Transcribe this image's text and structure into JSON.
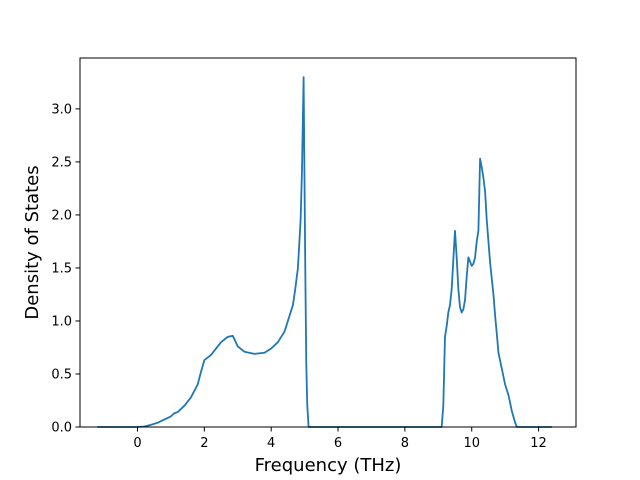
{
  "chart_data": {
    "type": "line",
    "title": "",
    "xlabel": "Frequency (THz)",
    "ylabel": "Density of States",
    "xlim": [
      -1.72,
      13.12
    ],
    "ylim": [
      0.0,
      3.48
    ],
    "xticks": [
      0,
      2,
      4,
      6,
      8,
      10,
      12
    ],
    "xtick_labels": [
      "0",
      "2",
      "4",
      "6",
      "8",
      "10",
      "12"
    ],
    "yticks": [
      0.0,
      0.5,
      1.0,
      1.5,
      2.0,
      2.5,
      3.0
    ],
    "ytick_labels": [
      "0.0",
      "0.5",
      "1.0",
      "1.5",
      "2.0",
      "2.5",
      "3.0"
    ],
    "grid": false,
    "line_color": "#1f77b4",
    "series": [
      {
        "x": [
          -1.2,
          -0.5,
          0.0,
          0.2,
          0.4,
          0.6,
          0.8,
          1.0,
          1.1,
          1.2,
          1.4,
          1.6,
          1.8,
          1.9,
          2.0,
          2.2,
          2.3,
          2.5,
          2.7,
          2.85,
          3.0,
          3.2,
          3.5,
          3.8,
          4.0,
          4.2,
          4.4,
          4.55,
          4.65,
          4.72,
          4.8,
          4.88,
          4.92,
          4.97,
          5.02,
          5.05,
          5.08,
          5.12,
          6.0,
          8.0,
          9.0,
          9.1,
          9.15,
          9.2,
          9.25,
          9.3,
          9.35,
          9.4,
          9.45,
          9.5,
          9.55,
          9.6,
          9.65,
          9.7,
          9.75,
          9.8,
          9.85,
          9.9,
          9.95,
          10.0,
          10.05,
          10.1,
          10.15,
          10.2,
          10.25,
          10.3,
          10.35,
          10.4,
          10.45,
          10.55,
          10.65,
          10.7,
          10.75,
          10.8,
          10.9,
          11.0,
          11.1,
          11.2,
          11.3,
          11.35,
          11.4,
          11.5,
          12.0,
          12.4
        ],
        "y": [
          0.0,
          0.0,
          0.0,
          0.005,
          0.02,
          0.04,
          0.07,
          0.1,
          0.13,
          0.14,
          0.2,
          0.28,
          0.4,
          0.52,
          0.63,
          0.68,
          0.72,
          0.8,
          0.85,
          0.86,
          0.76,
          0.71,
          0.69,
          0.7,
          0.74,
          0.8,
          0.9,
          1.05,
          1.15,
          1.3,
          1.5,
          1.95,
          2.4,
          3.3,
          1.5,
          0.6,
          0.2,
          0.0,
          0.0,
          0.0,
          0.0,
          0.0,
          0.2,
          0.85,
          0.95,
          1.08,
          1.15,
          1.3,
          1.58,
          1.85,
          1.6,
          1.3,
          1.13,
          1.08,
          1.11,
          1.2,
          1.42,
          1.6,
          1.56,
          1.52,
          1.54,
          1.6,
          1.75,
          1.85,
          2.53,
          2.45,
          2.35,
          2.22,
          1.95,
          1.55,
          1.25,
          1.05,
          0.88,
          0.7,
          0.55,
          0.4,
          0.3,
          0.15,
          0.04,
          0.0,
          0.0,
          0.0,
          0.0,
          0.0
        ]
      }
    ]
  }
}
